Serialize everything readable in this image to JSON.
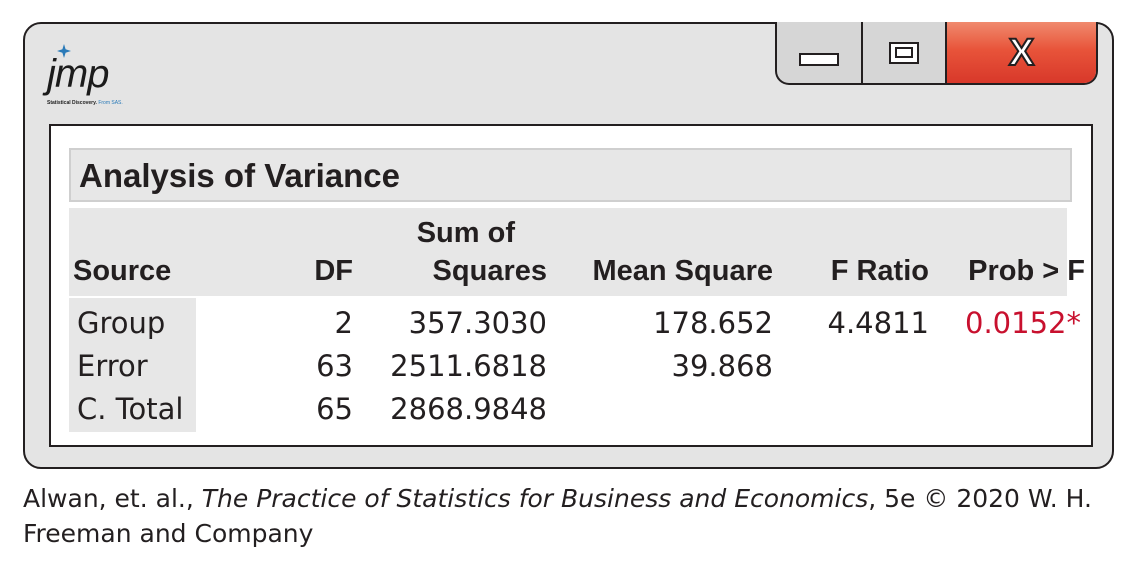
{
  "app": {
    "logo_text": "jmp",
    "logo_tagline": "Statistical Discovery.",
    "logo_tagline_sub": "From SAS."
  },
  "window_controls": {
    "minimize_icon": "minimize-icon",
    "maximize_icon": "maximize-icon",
    "close_icon": "close-icon",
    "close_label": "X"
  },
  "report": {
    "title": "Analysis of Variance",
    "columns": {
      "source": "Source",
      "df": "DF",
      "ss_top": "Sum of",
      "ss_bottom": "Squares",
      "ms": "Mean Square",
      "f": "F Ratio",
      "p": "Prob > F"
    },
    "rows": [
      {
        "source": "Group",
        "df": "2",
        "ss": "357.3030",
        "ms": "178.652",
        "f": "4.4811",
        "p": "0.0152*"
      },
      {
        "source": "Error",
        "df": "63",
        "ss": "2511.6818",
        "ms": "39.868",
        "f": "",
        "p": ""
      },
      {
        "source": "C. Total",
        "df": "65",
        "ss": "2868.9848",
        "ms": "",
        "f": "",
        "p": ""
      }
    ],
    "significance_color": "#c8102e"
  },
  "credit": {
    "prefix": "Alwan, et. al., ",
    "book_title": "The Practice of Statistics for Business and Economics",
    "suffix": ", 5e © 2020 W. H. Freeman and Company"
  }
}
